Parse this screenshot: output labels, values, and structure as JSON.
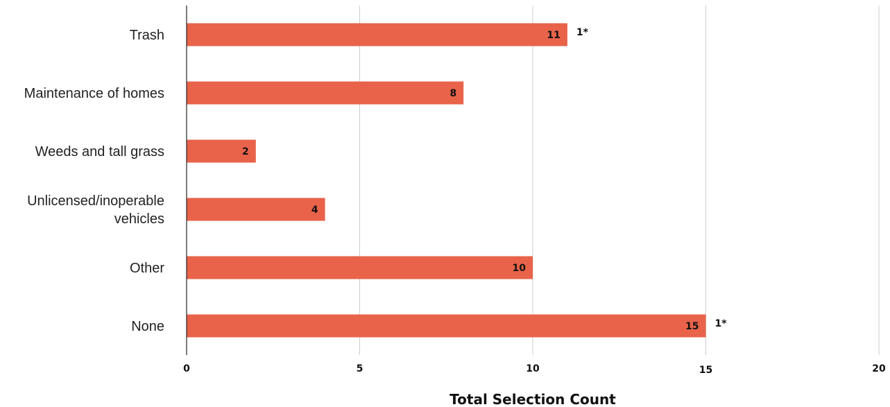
{
  "chart_data": {
    "type": "bar",
    "orientation": "horizontal",
    "title": "",
    "xlabel": "Total Selection Count",
    "ylabel": "",
    "xlim": [
      0,
      20
    ],
    "x_ticks": [
      0,
      5,
      10,
      15,
      20
    ],
    "grid": "vertical gridlines",
    "legend": "none",
    "bar_color": "#E8634A",
    "categories": [
      [
        "Trash"
      ],
      [
        "Maintenance of homes"
      ],
      [
        "Weeds and tall grass"
      ],
      [
        "Unlicensed/inoperable",
        "vehicles"
      ],
      [
        "Other"
      ],
      [
        "None"
      ]
    ],
    "values": [
      11,
      8,
      2,
      4,
      10,
      15
    ],
    "data_labels": [
      "11",
      "8",
      "2",
      "4",
      "10",
      "15"
    ],
    "annotations": [
      "1*",
      "",
      "",
      "",
      "",
      "1*"
    ]
  }
}
